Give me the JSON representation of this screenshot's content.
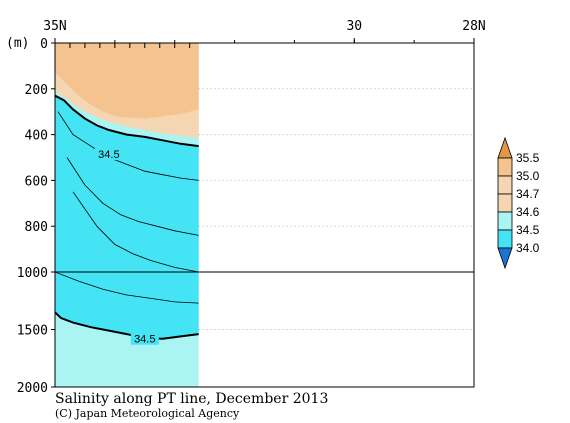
{
  "chart_data": {
    "type": "heatmap",
    "title": "Salinity along PT line, December 2013",
    "credit": "(C) Japan Meteorological Agency",
    "x_axis": {
      "tick_labels": [
        "35N",
        "30",
        "28N"
      ],
      "tick_values": [
        35,
        30,
        28
      ],
      "range": [
        35,
        28
      ]
    },
    "y_axis": {
      "unit_label": "(m)",
      "tick_labels": [
        "0",
        "200",
        "400",
        "600",
        "800",
        "1000",
        "1500",
        "2000"
      ],
      "tick_values": [
        0,
        200,
        400,
        600,
        800,
        1000,
        1500,
        2000
      ],
      "range": [
        0,
        2000
      ],
      "scale_change_at": 1000
    },
    "data_extent_lat": [
      35,
      32.6
    ],
    "contour_labels": [
      {
        "text": "34.5",
        "lat": 34.1,
        "depth": 485
      },
      {
        "text": "34.5",
        "lat": 33.5,
        "depth": 1580
      }
    ],
    "bands": [
      {
        "level": 34.0,
        "name": "34.5-34.6",
        "color": "#44e4f4",
        "top": [
          [
            35.0,
            230
          ],
          [
            34.85,
            250
          ],
          [
            34.7,
            290
          ],
          [
            34.5,
            330
          ],
          [
            34.3,
            360
          ],
          [
            34.1,
            380
          ],
          [
            33.8,
            400
          ],
          [
            33.5,
            410
          ],
          [
            33.2,
            425
          ],
          [
            32.9,
            440
          ],
          [
            32.6,
            450
          ]
        ],
        "bottom": [
          [
            35.0,
            1350
          ],
          [
            34.9,
            1400
          ],
          [
            34.7,
            1440
          ],
          [
            34.4,
            1480
          ],
          [
            34.1,
            1510
          ],
          [
            33.8,
            1540
          ],
          [
            33.5,
            1575
          ],
          [
            33.2,
            1580
          ],
          [
            32.9,
            1560
          ],
          [
            32.6,
            1540
          ]
        ]
      },
      {
        "level": 34.5,
        "name": "34.6-34.7",
        "color": "#aaf4f4",
        "top": [
          [
            35.0,
            215
          ],
          [
            34.85,
            235
          ],
          [
            34.7,
            265
          ],
          [
            34.5,
            300
          ],
          [
            34.3,
            325
          ],
          [
            34.1,
            345
          ],
          [
            33.8,
            365
          ],
          [
            33.5,
            380
          ],
          [
            33.2,
            395
          ],
          [
            32.9,
            405
          ],
          [
            32.6,
            415
          ]
        ],
        "bottom": [
          [
            35.0,
            230
          ],
          [
            34.85,
            250
          ],
          [
            34.7,
            290
          ],
          [
            34.5,
            330
          ],
          [
            34.3,
            360
          ],
          [
            34.1,
            380
          ],
          [
            33.8,
            400
          ],
          [
            33.5,
            410
          ],
          [
            33.2,
            425
          ],
          [
            32.9,
            440
          ],
          [
            32.6,
            450
          ]
        ]
      },
      {
        "level": 34.6,
        "name": "34.7-35.0",
        "color": "#f5d6b3",
        "top": [
          [
            35.0,
            0
          ],
          [
            32.6,
            0
          ]
        ],
        "bottom": [
          [
            35.0,
            215
          ],
          [
            34.85,
            235
          ],
          [
            34.7,
            265
          ],
          [
            34.5,
            300
          ],
          [
            34.3,
            325
          ],
          [
            34.1,
            345
          ],
          [
            33.8,
            365
          ],
          [
            33.5,
            380
          ],
          [
            33.2,
            395
          ],
          [
            32.9,
            405
          ],
          [
            32.6,
            415
          ]
        ]
      },
      {
        "level": 34.7,
        "name": "35.0-35.5",
        "color": "#f4c38f",
        "top": [
          [
            35.0,
            0
          ],
          [
            32.6,
            0
          ]
        ],
        "bottom": [
          [
            35.0,
            130
          ],
          [
            34.8,
            180
          ],
          [
            34.6,
            230
          ],
          [
            34.4,
            270
          ],
          [
            34.2,
            300
          ],
          [
            34.0,
            320
          ],
          [
            33.8,
            325
          ],
          [
            33.5,
            330
          ],
          [
            33.2,
            320
          ],
          [
            32.9,
            310
          ],
          [
            32.6,
            290
          ]
        ]
      }
    ],
    "contours": [
      {
        "level": 34.5,
        "bold": true,
        "points": [
          [
            35.0,
            230
          ],
          [
            34.85,
            250
          ],
          [
            34.7,
            290
          ],
          [
            34.5,
            330
          ],
          [
            34.3,
            360
          ],
          [
            34.1,
            380
          ],
          [
            33.8,
            400
          ],
          [
            33.5,
            410
          ],
          [
            33.2,
            425
          ],
          [
            32.9,
            440
          ],
          [
            32.6,
            450
          ]
        ]
      },
      {
        "level": 34.4,
        "bold": false,
        "points": [
          [
            34.95,
            300
          ],
          [
            34.7,
            400
          ],
          [
            34.4,
            450
          ],
          [
            34.1,
            500
          ],
          [
            33.8,
            530
          ],
          [
            33.5,
            560
          ],
          [
            33.2,
            575
          ],
          [
            32.9,
            590
          ],
          [
            32.6,
            600
          ]
        ]
      },
      {
        "level": 34.35,
        "bold": false,
        "points": [
          [
            34.8,
            500
          ],
          [
            34.5,
            620
          ],
          [
            34.2,
            700
          ],
          [
            33.9,
            750
          ],
          [
            33.6,
            780
          ],
          [
            33.3,
            800
          ],
          [
            33.0,
            820
          ],
          [
            32.6,
            840
          ]
        ]
      },
      {
        "level": 34.3,
        "bold": false,
        "points": [
          [
            34.7,
            650
          ],
          [
            34.3,
            800
          ],
          [
            34.0,
            880
          ],
          [
            33.7,
            920
          ],
          [
            33.4,
            950
          ],
          [
            33.0,
            980
          ],
          [
            32.6,
            1000
          ]
        ]
      },
      {
        "level": 34.25,
        "bold": false,
        "points": [
          [
            35.0,
            1000
          ],
          [
            34.6,
            1080
          ],
          [
            34.2,
            1150
          ],
          [
            33.8,
            1200
          ],
          [
            33.4,
            1230
          ],
          [
            33.0,
            1260
          ],
          [
            32.6,
            1270
          ]
        ]
      },
      {
        "level": 34.5,
        "bold": true,
        "points": [
          [
            35.0,
            1350
          ],
          [
            34.9,
            1400
          ],
          [
            34.7,
            1440
          ],
          [
            34.4,
            1480
          ],
          [
            34.1,
            1510
          ],
          [
            33.8,
            1540
          ],
          [
            33.5,
            1575
          ],
          [
            33.2,
            1580
          ],
          [
            32.9,
            1560
          ],
          [
            32.6,
            1540
          ]
        ]
      }
    ]
  },
  "colorbar": {
    "labels": [
      "35.5",
      "35.0",
      "34.7",
      "34.6",
      "34.5",
      "34.0"
    ],
    "colors": [
      "#e09844",
      "#f4c38f",
      "#f5d6b3",
      "#aaf4f4",
      "#44e4f4",
      "#1a8fd6"
    ],
    "extend_top_color": "#e09844",
    "extend_bottom_color": "#1a74d6"
  }
}
